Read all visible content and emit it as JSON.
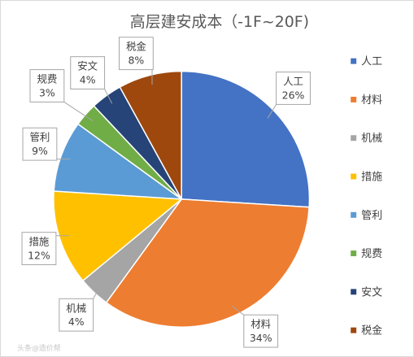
{
  "chart_data": {
    "type": "pie",
    "title": "高层建安成本（-1F~20F)",
    "categories": [
      "人工",
      "材料",
      "机械",
      "措施",
      "管利",
      "规费",
      "安文",
      "税金"
    ],
    "values": [
      26,
      34,
      4,
      12,
      9,
      3,
      4,
      8
    ],
    "percent_labels": [
      "26%",
      "34%",
      "4%",
      "12%",
      "9%",
      "3%",
      "4%",
      "8%"
    ],
    "colors": [
      "#4472C4",
      "#ED7D31",
      "#A5A5A5",
      "#FFC000",
      "#5B9BD5",
      "#70AD47",
      "#264478",
      "#9E480E"
    ],
    "start_angle_deg": 0,
    "direction": "clockwise",
    "legend_position": "right"
  },
  "watermark": "头条@造价帮"
}
